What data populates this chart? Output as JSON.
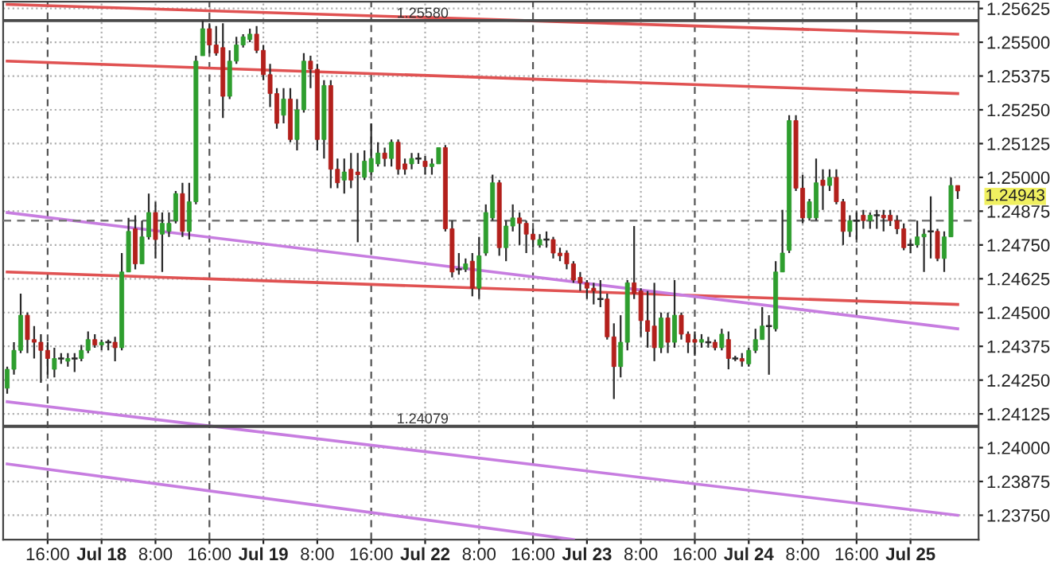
{
  "chart_data": {
    "type": "candlestick",
    "categories": [
      null,
      null,
      null,
      null,
      null,
      null,
      "16:00",
      null,
      null,
      null,
      null,
      null,
      null,
      null,
      "Jul 18",
      null,
      null,
      null,
      null,
      null,
      null,
      null,
      "8:00",
      null,
      null,
      null,
      null,
      null,
      null,
      null,
      "16:00",
      null,
      null,
      null,
      null,
      null,
      null,
      null,
      "Jul 19",
      null,
      null,
      null,
      null,
      null,
      null,
      null,
      "8:00",
      null,
      null,
      null,
      null,
      null,
      null,
      null,
      "16:00",
      null,
      null,
      null,
      null,
      null,
      null,
      null,
      "Jul 22",
      null,
      null,
      null,
      null,
      null,
      null,
      null,
      "8:00",
      null,
      null,
      null,
      null,
      null,
      null,
      null,
      "16:00",
      null,
      null,
      null,
      null,
      null,
      null,
      null,
      "Jul 23",
      null,
      null,
      null,
      null,
      null,
      null,
      null,
      "8:00",
      null,
      null,
      null,
      null,
      null,
      null,
      null,
      "16:00",
      null,
      null,
      null,
      null,
      null,
      null,
      null,
      "Jul 24",
      null,
      null,
      null,
      null,
      null,
      null,
      null,
      "8:00",
      null,
      null,
      null,
      null,
      null,
      null,
      null,
      "16:00",
      null,
      null,
      null,
      null,
      null,
      null,
      null,
      "Jul 25",
      null,
      null,
      null,
      null,
      null,
      null,
      null
    ],
    "ohlc": [
      [
        1.2422,
        1.243,
        1.242,
        1.2429
      ],
      [
        1.2429,
        1.2439,
        1.2427,
        1.2436
      ],
      [
        1.2436,
        1.2457,
        1.2435,
        1.2449
      ],
      [
        1.2449,
        1.245,
        1.2435,
        1.244
      ],
      [
        1.244,
        1.2445,
        1.2433,
        1.2439
      ],
      [
        1.2439,
        1.2442,
        1.2424,
        1.2436
      ],
      [
        1.2436,
        1.2439,
        1.2427,
        1.2433
      ],
      [
        1.2429,
        1.2437,
        1.2426,
        1.2433
      ],
      [
        1.2433,
        1.2435,
        1.2431,
        1.2433
      ],
      [
        1.2432,
        1.2435,
        1.243,
        1.2433
      ],
      [
        1.2433,
        1.2435,
        1.2428,
        1.2433
      ],
      [
        1.2433,
        1.2438,
        1.2432,
        1.2436
      ],
      [
        1.2436,
        1.2443,
        1.2435,
        1.244
      ],
      [
        1.244,
        1.2442,
        1.2437,
        1.2438
      ],
      [
        1.2438,
        1.244,
        1.2436,
        1.2439
      ],
      [
        1.2439,
        1.244,
        1.2436,
        1.2439
      ],
      [
        1.2439,
        1.2441,
        1.2432,
        1.2437
      ],
      [
        1.2437,
        1.2472,
        1.2436,
        1.2465
      ],
      [
        1.2465,
        1.2485,
        1.2465,
        1.248
      ],
      [
        1.2481,
        1.2486,
        1.2466,
        1.2468
      ],
      [
        1.2468,
        1.2484,
        1.2468,
        1.2478
      ],
      [
        1.2478,
        1.2494,
        1.2477,
        1.2487
      ],
      [
        1.2487,
        1.2491,
        1.247,
        1.2477
      ],
      [
        1.2479,
        1.2487,
        1.2465,
        1.2483
      ],
      [
        1.248,
        1.2487,
        1.2478,
        1.2483
      ],
      [
        1.2484,
        1.2495,
        1.2483,
        1.2494
      ],
      [
        1.2494,
        1.2498,
        1.2478,
        1.248
      ],
      [
        1.248,
        1.2498,
        1.2477,
        1.2491
      ],
      [
        1.2491,
        1.2545,
        1.249,
        1.2543
      ],
      [
        1.2545,
        1.2558,
        1.2545,
        1.2555
      ],
      [
        1.2555,
        1.2557,
        1.2546,
        1.2549
      ],
      [
        1.2549,
        1.2556,
        1.2545,
        1.2546
      ],
      [
        1.2548,
        1.2557,
        1.2522,
        1.253
      ],
      [
        1.253,
        1.2547,
        1.2529,
        1.2543
      ],
      [
        1.2543,
        1.2552,
        1.2542,
        1.2549
      ],
      [
        1.2549,
        1.2553,
        1.2548,
        1.2552
      ],
      [
        1.2551,
        1.2555,
        1.255,
        1.2553
      ],
      [
        1.2553,
        1.2556,
        1.2546,
        1.2547
      ],
      [
        1.2547,
        1.2549,
        1.2536,
        1.2538
      ],
      [
        1.2538,
        1.2542,
        1.2526,
        1.2531
      ],
      [
        1.2531,
        1.2533,
        1.2518,
        1.252
      ],
      [
        1.2523,
        1.2533,
        1.252,
        1.2529
      ],
      [
        1.2529,
        1.2533,
        1.2513,
        1.2514
      ],
      [
        1.2514,
        1.2529,
        1.251,
        1.2525
      ],
      [
        1.2525,
        1.2546,
        1.2524,
        1.2543
      ],
      [
        1.2543,
        1.2545,
        1.2533,
        1.254
      ],
      [
        1.254,
        1.2542,
        1.251,
        1.2514
      ],
      [
        1.2514,
        1.2536,
        1.2507,
        1.2534
      ],
      [
        1.2534,
        1.2536,
        1.2496,
        1.2503
      ],
      [
        1.2503,
        1.2507,
        1.2496,
        1.2498
      ],
      [
        1.2499,
        1.2507,
        1.2494,
        1.2502
      ],
      [
        1.2503,
        1.2509,
        1.2496,
        1.2499
      ],
      [
        1.2502,
        1.2509,
        1.2476,
        1.2501
      ],
      [
        1.25,
        1.251,
        1.2499,
        1.2506
      ],
      [
        1.2502,
        1.252,
        1.2501,
        1.2507
      ],
      [
        1.2505,
        1.2513,
        1.2504,
        1.2509
      ],
      [
        1.2509,
        1.2511,
        1.2504,
        1.2507
      ],
      [
        1.2507,
        1.2514,
        1.2504,
        1.2513
      ],
      [
        1.2513,
        1.2514,
        1.2501,
        1.2503
      ],
      [
        1.2505,
        1.2507,
        1.2501,
        1.2503
      ],
      [
        1.2505,
        1.2509,
        1.2503,
        1.2507
      ],
      [
        1.2507,
        1.2509,
        1.2505,
        1.2507
      ],
      [
        1.2506,
        1.2508,
        1.2501,
        1.2504
      ],
      [
        1.2504,
        1.2507,
        1.2501,
        1.2505
      ],
      [
        1.2505,
        1.2511,
        1.2505,
        1.2511
      ],
      [
        1.2511,
        1.2512,
        1.248,
        1.2481
      ],
      [
        1.2481,
        1.2484,
        1.2463,
        1.2465
      ],
      [
        1.2466,
        1.2472,
        1.2464,
        1.2466
      ],
      [
        1.2466,
        1.247,
        1.2465,
        1.2468
      ],
      [
        1.2469,
        1.2472,
        1.2456,
        1.2459
      ],
      [
        1.2459,
        1.2478,
        1.2455,
        1.2471
      ],
      [
        1.2472,
        1.249,
        1.2471,
        1.2487
      ],
      [
        1.2485,
        1.2501,
        1.2484,
        1.2498
      ],
      [
        1.2498,
        1.2499,
        1.2471,
        1.2474
      ],
      [
        1.2474,
        1.2484,
        1.2469,
        1.2482
      ],
      [
        1.2482,
        1.249,
        1.248,
        1.2485
      ],
      [
        1.2485,
        1.2487,
        1.2475,
        1.2483
      ],
      [
        1.2483,
        1.2484,
        1.2472,
        1.2479
      ],
      [
        1.2479,
        1.2481,
        1.2474,
        1.2477
      ],
      [
        1.2475,
        1.2479,
        1.2474,
        1.2477
      ],
      [
        1.2477,
        1.248,
        1.2474,
        1.2477
      ],
      [
        1.2477,
        1.2478,
        1.247,
        1.2472
      ],
      [
        1.2472,
        1.2474,
        1.2469,
        1.2471
      ],
      [
        1.2472,
        1.2473,
        1.2466,
        1.2468
      ],
      [
        1.2468,
        1.2469,
        1.2461,
        1.2462
      ],
      [
        1.2463,
        1.2465,
        1.2458,
        1.2461
      ],
      [
        1.2461,
        1.2462,
        1.2455,
        1.2459
      ],
      [
        1.2459,
        1.2461,
        1.2453,
        1.2458
      ],
      [
        1.2455,
        1.2462,
        1.2452,
        1.2455
      ],
      [
        1.2455,
        1.2457,
        1.244,
        1.2441
      ],
      [
        1.2441,
        1.2446,
        1.2418,
        1.243
      ],
      [
        1.243,
        1.2449,
        1.2426,
        1.2439
      ],
      [
        1.2439,
        1.2462,
        1.2436,
        1.2461
      ],
      [
        1.2461,
        1.2482,
        1.2455,
        1.2457
      ],
      [
        1.2458,
        1.2459,
        1.2441,
        1.2447
      ],
      [
        1.2447,
        1.2458,
        1.2437,
        1.2443
      ],
      [
        1.2445,
        1.2461,
        1.2432,
        1.2437
      ],
      [
        1.2437,
        1.245,
        1.2435,
        1.2448
      ],
      [
        1.2448,
        1.245,
        1.2435,
        1.2439
      ],
      [
        1.2439,
        1.2462,
        1.2437,
        1.2449
      ],
      [
        1.2449,
        1.245,
        1.244,
        1.2442
      ],
      [
        1.2442,
        1.2443,
        1.2435,
        1.2439
      ],
      [
        1.244,
        1.2443,
        1.2434,
        1.2439
      ],
      [
        1.2439,
        1.2442,
        1.2437,
        1.244
      ],
      [
        1.2439,
        1.2441,
        1.2437,
        1.2439
      ],
      [
        1.2439,
        1.244,
        1.2436,
        1.2437
      ],
      [
        1.2437,
        1.2444,
        1.2436,
        1.2442
      ],
      [
        1.244,
        1.2443,
        1.2429,
        1.2433
      ],
      [
        1.2433,
        1.2434,
        1.2432,
        1.2433
      ],
      [
        1.2433,
        1.2435,
        1.243,
        1.2432
      ],
      [
        1.2431,
        1.2437,
        1.243,
        1.2436
      ],
      [
        1.2436,
        1.2444,
        1.2435,
        1.244
      ],
      [
        1.244,
        1.2452,
        1.244,
        1.2445
      ],
      [
        1.2445,
        1.2449,
        1.2427,
        1.2445
      ],
      [
        1.2444,
        1.2469,
        1.2443,
        1.2465
      ],
      [
        1.2465,
        1.2488,
        1.2465,
        1.2472
      ],
      [
        1.2473,
        1.2523,
        1.2472,
        1.2521
      ],
      [
        1.2521,
        1.2523,
        1.2495,
        1.2496
      ],
      [
        1.2496,
        1.2501,
        1.2483,
        1.2485
      ],
      [
        1.2485,
        1.2492,
        1.2484,
        1.2491
      ],
      [
        1.2485,
        1.2507,
        1.2484,
        1.2498
      ],
      [
        1.2499,
        1.2503,
        1.2488,
        1.2497
      ],
      [
        1.2497,
        1.2503,
        1.2495,
        1.25
      ],
      [
        1.25,
        1.2503,
        1.249,
        1.2491
      ],
      [
        1.2491,
        1.2492,
        1.2475,
        1.248
      ],
      [
        1.248,
        1.2486,
        1.2478,
        1.2484
      ],
      [
        1.2484,
        1.2487,
        1.2477,
        1.2484
      ],
      [
        1.2486,
        1.2488,
        1.2481,
        1.2484
      ],
      [
        1.2484,
        1.2487,
        1.2481,
        1.2486
      ],
      [
        1.2486,
        1.2488,
        1.2481,
        1.2486
      ],
      [
        1.2486,
        1.2488,
        1.248,
        1.2485
      ],
      [
        1.2486,
        1.2488,
        1.2482,
        1.2484
      ],
      [
        1.2484,
        1.2486,
        1.2479,
        1.2481
      ],
      [
        1.2481,
        1.2483,
        1.2473,
        1.2474
      ],
      [
        1.2475,
        1.2477,
        1.2472,
        1.2475
      ],
      [
        1.2475,
        1.2484,
        1.2474,
        1.2478
      ],
      [
        1.2478,
        1.2481,
        1.2465,
        1.2479
      ],
      [
        1.248,
        1.2493,
        1.247,
        1.248
      ],
      [
        1.248,
        1.2481,
        1.2469,
        1.247
      ],
      [
        1.247,
        1.248,
        1.2465,
        1.2478
      ],
      [
        1.2478,
        1.25,
        1.2478,
        1.2497
      ],
      [
        1.2497,
        1.2497,
        1.2492,
        1.2495
      ]
    ],
    "series": [
      {
        "type": "line",
        "color": "#e05252",
        "values": [
          1.2564,
          null,
          null,
          null,
          null,
          null,
          null,
          null,
          null,
          null,
          null,
          null,
          null,
          null,
          null,
          null,
          null,
          null,
          null,
          null,
          null,
          null,
          null,
          null,
          null,
          null,
          null,
          null,
          null,
          null,
          null,
          null,
          null,
          null,
          null,
          null,
          null,
          null,
          null,
          null,
          null,
          null,
          null,
          null,
          null,
          null,
          null,
          null,
          null,
          null,
          null,
          null,
          null,
          null,
          null,
          null,
          null,
          null,
          null,
          null,
          null,
          null,
          null,
          null,
          null,
          null,
          null,
          null,
          null,
          null,
          null,
          null,
          null,
          null,
          null,
          null,
          null,
          null,
          null,
          null,
          null,
          null,
          null,
          null,
          null,
          null,
          null,
          null,
          null,
          null,
          null,
          null,
          null,
          null,
          null,
          null,
          null,
          null,
          null,
          null,
          null,
          null,
          null,
          null,
          null,
          null,
          null,
          null,
          null,
          null,
          null,
          null,
          null,
          null,
          null,
          null,
          null,
          null,
          null,
          null,
          null,
          null,
          null,
          null,
          null,
          null,
          null,
          null,
          null,
          null,
          null,
          null,
          null,
          null,
          null,
          null,
          null,
          null,
          null,
          null,
          null,
          1.2553
        ]
      },
      {
        "type": "line",
        "color": "#e05252",
        "values": [
          1.2543,
          null,
          null,
          null,
          null,
          null,
          null,
          null,
          null,
          null,
          null,
          null,
          null,
          null,
          null,
          null,
          null,
          null,
          null,
          null,
          null,
          null,
          null,
          null,
          null,
          null,
          null,
          null,
          null,
          null,
          null,
          null,
          null,
          null,
          null,
          null,
          null,
          null,
          null,
          null,
          null,
          null,
          null,
          null,
          null,
          null,
          null,
          null,
          null,
          null,
          null,
          null,
          null,
          null,
          null,
          null,
          null,
          null,
          null,
          null,
          null,
          null,
          null,
          null,
          null,
          null,
          null,
          null,
          null,
          null,
          null,
          null,
          null,
          null,
          null,
          null,
          null,
          null,
          null,
          null,
          null,
          null,
          null,
          null,
          null,
          null,
          null,
          null,
          null,
          null,
          null,
          null,
          null,
          null,
          null,
          null,
          null,
          null,
          null,
          null,
          null,
          null,
          null,
          null,
          null,
          null,
          null,
          null,
          null,
          null,
          null,
          null,
          null,
          null,
          null,
          null,
          null,
          null,
          null,
          null,
          null,
          null,
          null,
          null,
          null,
          null,
          null,
          null,
          null,
          null,
          null,
          null,
          null,
          null,
          null,
          null,
          null,
          null,
          null,
          null,
          null,
          1.2531
        ]
      },
      {
        "type": "line",
        "color": "#e05252",
        "values": [
          1.2465,
          null,
          null,
          null,
          null,
          null,
          null,
          null,
          null,
          null,
          null,
          null,
          null,
          null,
          null,
          null,
          null,
          null,
          null,
          null,
          null,
          null,
          null,
          null,
          null,
          null,
          null,
          null,
          null,
          null,
          null,
          null,
          null,
          null,
          null,
          null,
          null,
          null,
          null,
          null,
          null,
          null,
          null,
          null,
          null,
          null,
          null,
          null,
          null,
          null,
          null,
          null,
          null,
          null,
          null,
          null,
          null,
          null,
          null,
          null,
          null,
          null,
          null,
          null,
          null,
          null,
          null,
          null,
          null,
          null,
          null,
          null,
          null,
          null,
          null,
          null,
          null,
          null,
          null,
          null,
          null,
          null,
          null,
          null,
          null,
          null,
          null,
          null,
          null,
          null,
          null,
          null,
          null,
          null,
          null,
          null,
          null,
          null,
          null,
          null,
          null,
          null,
          null,
          null,
          null,
          null,
          null,
          null,
          null,
          null,
          null,
          null,
          null,
          null,
          null,
          null,
          null,
          null,
          null,
          null,
          null,
          null,
          null,
          null,
          null,
          null,
          null,
          null,
          null,
          null,
          null,
          null,
          null,
          null,
          null,
          null,
          null,
          null,
          null,
          null,
          null,
          1.2453
        ]
      },
      {
        "type": "line",
        "color": "#c77de0",
        "values": [
          1.2487,
          null,
          null,
          null,
          null,
          null,
          null,
          null,
          null,
          null,
          null,
          null,
          null,
          null,
          null,
          null,
          null,
          null,
          null,
          null,
          null,
          null,
          null,
          null,
          null,
          null,
          null,
          null,
          null,
          null,
          null,
          null,
          null,
          null,
          null,
          null,
          null,
          null,
          null,
          null,
          null,
          null,
          null,
          null,
          null,
          null,
          null,
          null,
          null,
          null,
          null,
          null,
          null,
          null,
          null,
          null,
          null,
          null,
          null,
          null,
          null,
          null,
          null,
          null,
          null,
          null,
          null,
          null,
          null,
          null,
          null,
          null,
          null,
          null,
          null,
          null,
          null,
          null,
          null,
          null,
          null,
          null,
          null,
          null,
          null,
          null,
          null,
          null,
          null,
          null,
          null,
          null,
          null,
          null,
          null,
          null,
          null,
          null,
          null,
          null,
          null,
          null,
          null,
          null,
          null,
          null,
          null,
          null,
          null,
          null,
          null,
          null,
          null,
          null,
          null,
          null,
          null,
          null,
          null,
          null,
          null,
          null,
          null,
          null,
          null,
          null,
          null,
          null,
          null,
          null,
          null,
          null,
          null,
          null,
          null,
          null,
          null,
          null,
          null,
          null,
          null,
          1.2444
        ]
      },
      {
        "type": "line",
        "color": "#c77de0",
        "values": [
          1.2417,
          null,
          null,
          null,
          null,
          null,
          null,
          null,
          null,
          null,
          null,
          null,
          null,
          null,
          null,
          null,
          null,
          null,
          null,
          null,
          null,
          null,
          null,
          null,
          null,
          null,
          null,
          null,
          null,
          null,
          null,
          null,
          null,
          null,
          null,
          null,
          null,
          null,
          null,
          null,
          null,
          null,
          null,
          null,
          null,
          null,
          null,
          null,
          null,
          null,
          null,
          null,
          null,
          null,
          null,
          null,
          null,
          null,
          null,
          null,
          null,
          null,
          null,
          null,
          null,
          null,
          null,
          null,
          null,
          null,
          null,
          null,
          null,
          null,
          null,
          null,
          null,
          null,
          null,
          null,
          null,
          null,
          null,
          null,
          null,
          null,
          null,
          null,
          null,
          null,
          null,
          null,
          null,
          null,
          null,
          null,
          null,
          null,
          null,
          null,
          null,
          null,
          null,
          null,
          null,
          null,
          null,
          null,
          null,
          null,
          null,
          null,
          null,
          null,
          null,
          null,
          null,
          null,
          null,
          null,
          null,
          null,
          null,
          null,
          null,
          null,
          null,
          null,
          null,
          null,
          null,
          null,
          null,
          null,
          null,
          null,
          null,
          null,
          null,
          null,
          null,
          1.2375
        ]
      },
      {
        "type": "line",
        "color": "#c77de0",
        "values": [
          1.2394,
          null,
          null,
          null,
          null,
          null,
          null,
          null,
          null,
          null,
          null,
          null,
          null,
          null,
          null,
          null,
          null,
          null,
          null,
          null,
          null,
          null,
          null,
          null,
          null,
          null,
          null,
          null,
          null,
          null,
          null,
          null,
          null,
          null,
          null,
          null,
          null,
          null,
          null,
          null,
          null,
          null,
          null,
          null,
          null,
          null,
          null,
          null,
          null,
          null,
          null,
          null,
          null,
          null,
          null,
          null,
          null,
          null,
          null,
          null,
          null,
          null,
          null,
          null,
          null,
          null,
          null,
          null,
          null,
          null,
          null,
          null,
          null,
          null,
          null,
          null,
          null,
          null,
          null,
          null,
          null,
          null,
          null,
          null,
          1.2366,
          null,
          null,
          null,
          null,
          null,
          null,
          null,
          null,
          null,
          null,
          null,
          null,
          null,
          null,
          null,
          null,
          null,
          null,
          null,
          null,
          null,
          null,
          null,
          null,
          null,
          null,
          null,
          null,
          null,
          null,
          null,
          null,
          null,
          null,
          null,
          null,
          null,
          null,
          null,
          null,
          null,
          null,
          null,
          null,
          null,
          null,
          null,
          null,
          null,
          null,
          null,
          null,
          null,
          null,
          null,
          null,
          null
        ]
      }
    ],
    "ref_lines": [
      {
        "axis": "y",
        "value": 1.2558,
        "label": "1.25580",
        "color": "#4a4a4a"
      },
      {
        "axis": "y",
        "value": 1.24079,
        "label": "1.24079",
        "color": "#4a4a4a"
      },
      {
        "axis": "y",
        "value": 1.2484,
        "color": "#777777",
        "line_style": "dashed"
      }
    ],
    "annotations": [
      "1.24943"
    ],
    "ylim": [
      1.2366,
      1.2565
    ],
    "yticks": [
      1.25625,
      {
        "value": 1.255,
        "label": "1.25500"
      },
      1.25375,
      {
        "value": 1.2525,
        "label": "1.25250"
      },
      1.25125,
      {
        "value": 1.25,
        "label": "1.25000"
      },
      1.24875,
      {
        "value": 1.2475,
        "label": "1.24750"
      },
      1.24625,
      {
        "value": 1.245,
        "label": "1.24500"
      },
      1.24375,
      {
        "value": 1.2425,
        "label": "1.24250"
      },
      1.24125,
      {
        "value": 1.24,
        "label": "1.24000"
      },
      1.23875,
      {
        "value": 1.2375,
        "label": "1.23750"
      }
    ],
    "grid": true
  }
}
